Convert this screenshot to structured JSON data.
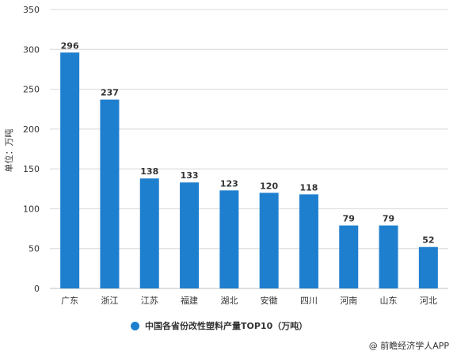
{
  "chart_data": {
    "type": "bar",
    "categories": [
      "广东",
      "浙江",
      "江苏",
      "福建",
      "湖北",
      "安徽",
      "四川",
      "河南",
      "山东",
      "河北"
    ],
    "series": [
      {
        "name": "中国各省份改性塑料产量TOP10（万吨）",
        "values": [
          296,
          237,
          138,
          133,
          123,
          120,
          118,
          79,
          79,
          52
        ]
      }
    ],
    "ylabel": "单位：万吨",
    "ylim": [
      0,
      350
    ],
    "yticks": [
      0,
      50,
      100,
      150,
      200,
      250,
      300,
      350
    ],
    "grid": true,
    "legend_position": "bottom",
    "bar_color": "#1f7fcf"
  },
  "credit": "@ 前瞻经济学人APP"
}
